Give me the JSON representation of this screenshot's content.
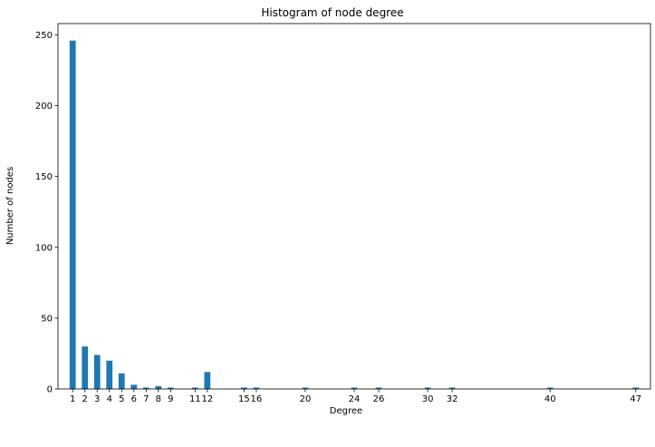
{
  "chart_data": {
    "type": "bar",
    "title": "Histogram of node degree",
    "xlabel": "Degree",
    "ylabel": "Number of nodes",
    "x": [
      1,
      2,
      3,
      4,
      5,
      6,
      7,
      8,
      9,
      11,
      12,
      15,
      16,
      20,
      24,
      26,
      30,
      32,
      40,
      47
    ],
    "values": [
      246,
      30,
      24,
      20,
      11,
      3,
      1,
      2,
      1,
      1,
      12,
      1,
      1,
      1,
      1,
      1,
      1,
      1,
      1,
      1
    ],
    "xticks": [
      "1",
      "2",
      "3",
      "4",
      "5",
      "6",
      "7",
      "8",
      "9",
      "11",
      "12",
      "15",
      "16",
      "20",
      "24",
      "26",
      "30",
      "32",
      "40",
      "47"
    ],
    "yticks": [
      0,
      50,
      100,
      150,
      200,
      250
    ],
    "xlim": [
      -0.2,
      48.2
    ],
    "ylim": [
      0,
      258
    ],
    "bar_width": 0.5,
    "bar_color": "#1f77b4",
    "grid": false
  }
}
